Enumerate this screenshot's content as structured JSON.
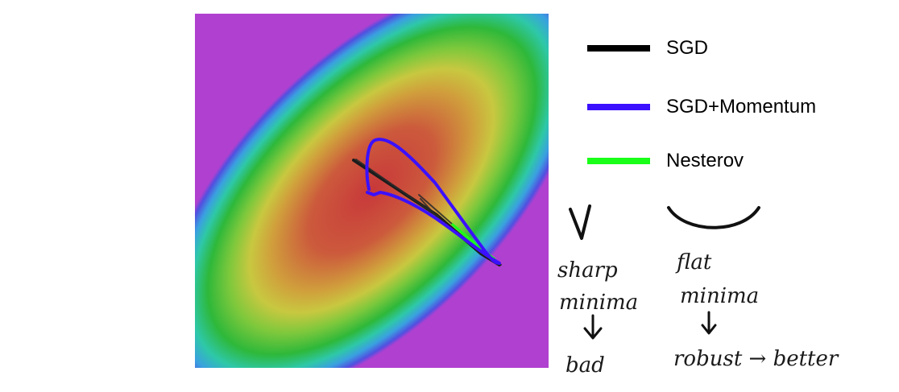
{
  "legend": {
    "items": [
      {
        "label": "SGD",
        "color": "#000000"
      },
      {
        "label": "SGD+Momentum",
        "color": "#3b10ff"
      },
      {
        "label": "Nesterov",
        "color": "#19ff19"
      }
    ]
  },
  "notes": {
    "sharp": {
      "line1": "sharp",
      "line2": "minima",
      "line3": "bad"
    },
    "flat": {
      "line1": "flat",
      "line2": "minima",
      "line3": "robust → better"
    }
  }
}
